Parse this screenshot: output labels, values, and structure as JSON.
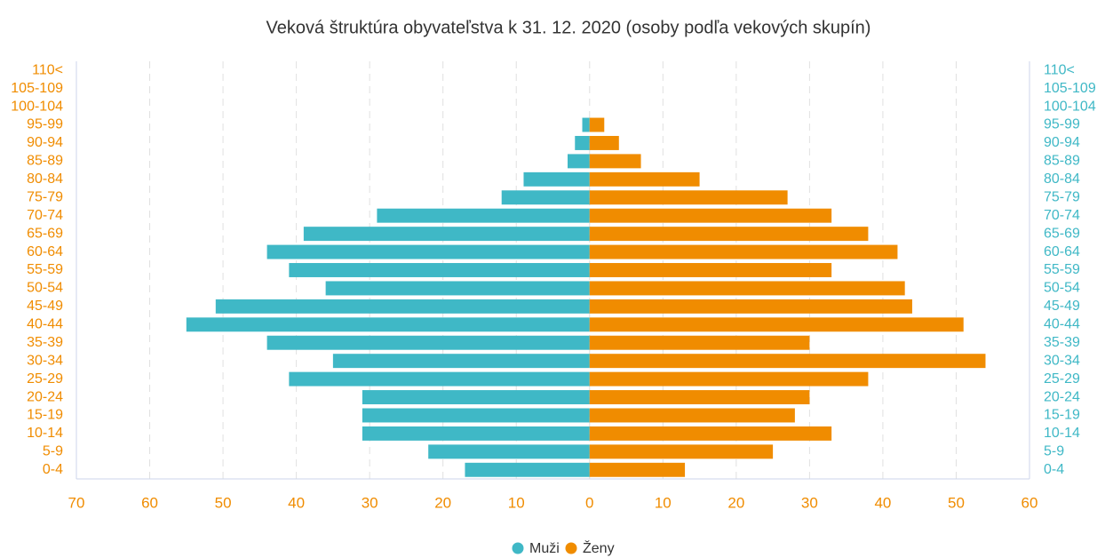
{
  "chart_data": {
    "type": "pyramid",
    "title": "Veková štruktúra obyvateľstva k 31. 12. 2020 (osoby podľa vekových skupín)",
    "categories": [
      "0-4",
      "5-9",
      "10-14",
      "15-19",
      "20-24",
      "25-29",
      "30-34",
      "35-39",
      "40-44",
      "45-49",
      "50-54",
      "55-59",
      "60-64",
      "65-69",
      "70-74",
      "75-79",
      "80-84",
      "85-89",
      "90-94",
      "95-99",
      "100-104",
      "105-109",
      "110<"
    ],
    "series": [
      {
        "name": "Muži",
        "color": "#3fb8c6",
        "values": [
          -17,
          -22,
          -31,
          -31,
          -31,
          -41,
          -35,
          -44,
          -55,
          -51,
          -36,
          -41,
          -44,
          -39,
          -29,
          -12,
          -9,
          -3,
          -2,
          -1,
          0,
          0,
          0
        ]
      },
      {
        "name": "Ženy",
        "color": "#f08c00",
        "values": [
          13,
          25,
          33,
          28,
          30,
          38,
          54,
          30,
          51,
          44,
          43,
          33,
          42,
          38,
          33,
          27,
          15,
          7,
          4,
          2,
          0,
          0,
          0
        ]
      }
    ],
    "xlim": [
      -70,
      60
    ],
    "xticks": [
      {
        "value": -70,
        "label": "70"
      },
      {
        "value": -60,
        "label": "60"
      },
      {
        "value": -50,
        "label": "50"
      },
      {
        "value": -40,
        "label": "40"
      },
      {
        "value": -30,
        "label": "30"
      },
      {
        "value": -20,
        "label": "20"
      },
      {
        "value": -10,
        "label": "10"
      },
      0,
      10,
      20,
      30,
      40,
      50,
      60
    ],
    "grid": true,
    "legend": "bottom"
  }
}
